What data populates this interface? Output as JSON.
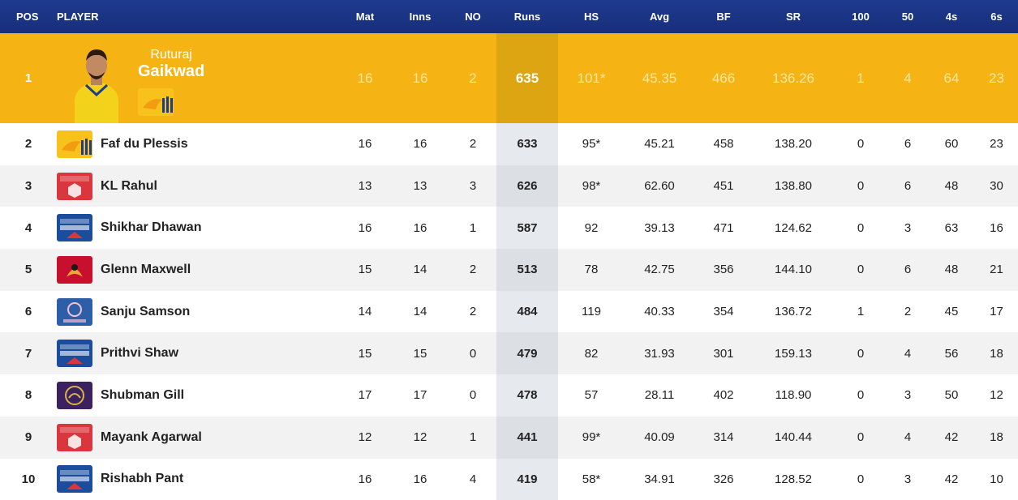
{
  "columns": {
    "pos": "POS",
    "player": "PLAYER",
    "mat": "Mat",
    "inns": "Inns",
    "no": "NO",
    "runs": "Runs",
    "hs": "HS",
    "avg": "Avg",
    "bf": "BF",
    "sr": "SR",
    "hundreds": "100",
    "fifties": "50",
    "fours": "4s",
    "sixes": "6s"
  },
  "leader": {
    "pos": "1",
    "first_name": "Ruturaj",
    "last_name": "Gaikwad",
    "mat": "16",
    "inns": "16",
    "no": "2",
    "runs": "635",
    "hs": "101*",
    "avg": "45.35",
    "bf": "466",
    "sr": "136.26",
    "hundreds": "1",
    "fifties": "4",
    "fours": "64",
    "sixes": "23",
    "team_logo": "csk-logo"
  },
  "rows": [
    {
      "pos": "2",
      "name": "Faf du Plessis",
      "team_logo": "csk-logo",
      "mat": "16",
      "inns": "16",
      "no": "2",
      "runs": "633",
      "hs": "95*",
      "avg": "45.21",
      "bf": "458",
      "sr": "138.20",
      "hundreds": "0",
      "fifties": "6",
      "fours": "60",
      "sixes": "23"
    },
    {
      "pos": "3",
      "name": "KL Rahul",
      "team_logo": "pbks-logo",
      "mat": "13",
      "inns": "13",
      "no": "3",
      "runs": "626",
      "hs": "98*",
      "avg": "62.60",
      "bf": "451",
      "sr": "138.80",
      "hundreds": "0",
      "fifties": "6",
      "fours": "48",
      "sixes": "30"
    },
    {
      "pos": "4",
      "name": "Shikhar Dhawan",
      "team_logo": "dc-logo",
      "mat": "16",
      "inns": "16",
      "no": "1",
      "runs": "587",
      "hs": "92",
      "avg": "39.13",
      "bf": "471",
      "sr": "124.62",
      "hundreds": "0",
      "fifties": "3",
      "fours": "63",
      "sixes": "16"
    },
    {
      "pos": "5",
      "name": "Glenn Maxwell",
      "team_logo": "rcb-logo",
      "mat": "15",
      "inns": "14",
      "no": "2",
      "runs": "513",
      "hs": "78",
      "avg": "42.75",
      "bf": "356",
      "sr": "144.10",
      "hundreds": "0",
      "fifties": "6",
      "fours": "48",
      "sixes": "21"
    },
    {
      "pos": "6",
      "name": "Sanju Samson",
      "team_logo": "rr-logo",
      "mat": "14",
      "inns": "14",
      "no": "2",
      "runs": "484",
      "hs": "119",
      "avg": "40.33",
      "bf": "354",
      "sr": "136.72",
      "hundreds": "1",
      "fifties": "2",
      "fours": "45",
      "sixes": "17"
    },
    {
      "pos": "7",
      "name": "Prithvi Shaw",
      "team_logo": "dc-logo",
      "mat": "15",
      "inns": "15",
      "no": "0",
      "runs": "479",
      "hs": "82",
      "avg": "31.93",
      "bf": "301",
      "sr": "159.13",
      "hundreds": "0",
      "fifties": "4",
      "fours": "56",
      "sixes": "18"
    },
    {
      "pos": "8",
      "name": "Shubman Gill",
      "team_logo": "kkr-logo",
      "mat": "17",
      "inns": "17",
      "no": "0",
      "runs": "478",
      "hs": "57",
      "avg": "28.11",
      "bf": "402",
      "sr": "118.90",
      "hundreds": "0",
      "fifties": "3",
      "fours": "50",
      "sixes": "12"
    },
    {
      "pos": "9",
      "name": "Mayank Agarwal",
      "team_logo": "pbks-logo",
      "mat": "12",
      "inns": "12",
      "no": "1",
      "runs": "441",
      "hs": "99*",
      "avg": "40.09",
      "bf": "314",
      "sr": "140.44",
      "hundreds": "0",
      "fifties": "4",
      "fours": "42",
      "sixes": "18"
    },
    {
      "pos": "10",
      "name": "Rishabh Pant",
      "team_logo": "dc-logo",
      "mat": "16",
      "inns": "16",
      "no": "4",
      "runs": "419",
      "hs": "58*",
      "avg": "34.91",
      "bf": "326",
      "sr": "128.52",
      "hundreds": "0",
      "fifties": "3",
      "fours": "42",
      "sixes": "10"
    }
  ],
  "colors": {
    "header": "#1e3a8f",
    "leader": "#f5b414",
    "csk": "#f7c21b",
    "pbks": "#d9363e",
    "dc": "#1b4d9c",
    "rcb": "#c8102e",
    "rr": "#2d5ea8",
    "kkr": "#3b215d"
  }
}
